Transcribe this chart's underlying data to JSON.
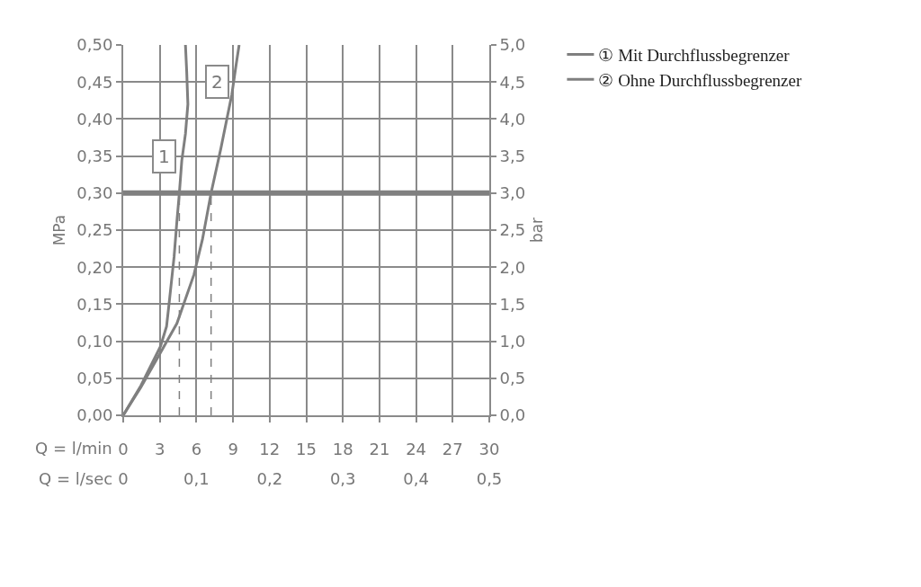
{
  "chart_data": {
    "type": "line",
    "xlabel": "Q = l/min",
    "ylabel": "MPa",
    "y2label": "bar",
    "x2label": "Q = l/sec",
    "xlim": [
      0,
      30
    ],
    "xticks": [
      0,
      3,
      6,
      9,
      12,
      15,
      18,
      21,
      24,
      27,
      30
    ],
    "x2lim": [
      0,
      0.5
    ],
    "x2ticks": [
      {
        "value": 0,
        "label": "0"
      },
      {
        "value": 0.1,
        "label": "0,1"
      },
      {
        "value": 0.2,
        "label": "0,2"
      },
      {
        "value": 0.3,
        "label": "0,3"
      },
      {
        "value": 0.4,
        "label": "0,4"
      },
      {
        "value": 0.5,
        "label": "0,5"
      }
    ],
    "ylim": [
      0,
      0.5
    ],
    "yticks": [
      {
        "value": 0,
        "label": "0,00"
      },
      {
        "value": 0.05,
        "label": "0,05"
      },
      {
        "value": 0.1,
        "label": "0,10"
      },
      {
        "value": 0.15,
        "label": "0,15"
      },
      {
        "value": 0.2,
        "label": "0,20"
      },
      {
        "value": 0.25,
        "label": "0,25"
      },
      {
        "value": 0.3,
        "label": "0,30"
      },
      {
        "value": 0.35,
        "label": "0,35"
      },
      {
        "value": 0.4,
        "label": "0,40"
      },
      {
        "value": 0.45,
        "label": "0,45"
      },
      {
        "value": 0.5,
        "label": "0,50"
      }
    ],
    "y2lim": [
      0,
      5
    ],
    "y2ticks": [
      {
        "value": 0,
        "label": "0,0"
      },
      {
        "value": 0.5,
        "label": "0,5"
      },
      {
        "value": 1,
        "label": "1,0"
      },
      {
        "value": 1.5,
        "label": "1,5"
      },
      {
        "value": 2,
        "label": "2,0"
      },
      {
        "value": 2.5,
        "label": "2,5"
      },
      {
        "value": 3,
        "label": "3,0"
      },
      {
        "value": 3.5,
        "label": "3,5"
      },
      {
        "value": 4,
        "label": "4,0"
      },
      {
        "value": 4.5,
        "label": "4,5"
      },
      {
        "value": 5,
        "label": "5,0"
      }
    ],
    "grid": true,
    "legend": "top right",
    "marker": "none",
    "line_style": "solid",
    "series": [
      {
        "name": "① Mit Durchflussbegrenzer",
        "color": "#7f7f7f",
        "x": [
          0,
          1.45,
          3.05,
          3.55,
          3.8,
          4.17,
          4.4,
          4.6,
          4.8,
          5.1,
          5.3,
          5.2,
          5.1
        ],
        "values": [
          0,
          0.04,
          0.093,
          0.12,
          0.157,
          0.214,
          0.262,
          0.3,
          0.344,
          0.38,
          0.42,
          0.465,
          0.5
        ]
      },
      {
        "name": "② Ohne Durchflussbegrenzer",
        "color": "#7f7f7f",
        "x": [
          0,
          1.45,
          2.9,
          4.4,
          5.8,
          6.5,
          7.2,
          8.0,
          8.9,
          9.25,
          9.5
        ],
        "values": [
          0,
          0.038,
          0.08,
          0.124,
          0.19,
          0.238,
          0.3,
          0.36,
          0.433,
          0.473,
          0.5
        ]
      },
      {
        "type": "line",
        "line_style": "dashed",
        "color": "#7f7f7f",
        "x": [
          4.6,
          4.6
        ],
        "values": [
          0,
          0.3
        ]
      },
      {
        "type": "line",
        "line_style": "dashed",
        "color": "#7f7f7f",
        "x": [
          7.2,
          7.2
        ],
        "values": [
          0,
          0.3
        ]
      }
    ],
    "ref_lines": [
      {
        "axis": "y",
        "value": 0.3,
        "color": "#808080"
      }
    ],
    "annotations": [
      {
        "text": "1",
        "x": 4.75,
        "y": 0.35
      },
      {
        "text": "2",
        "x": 9.05,
        "y": 0.45
      }
    ]
  }
}
